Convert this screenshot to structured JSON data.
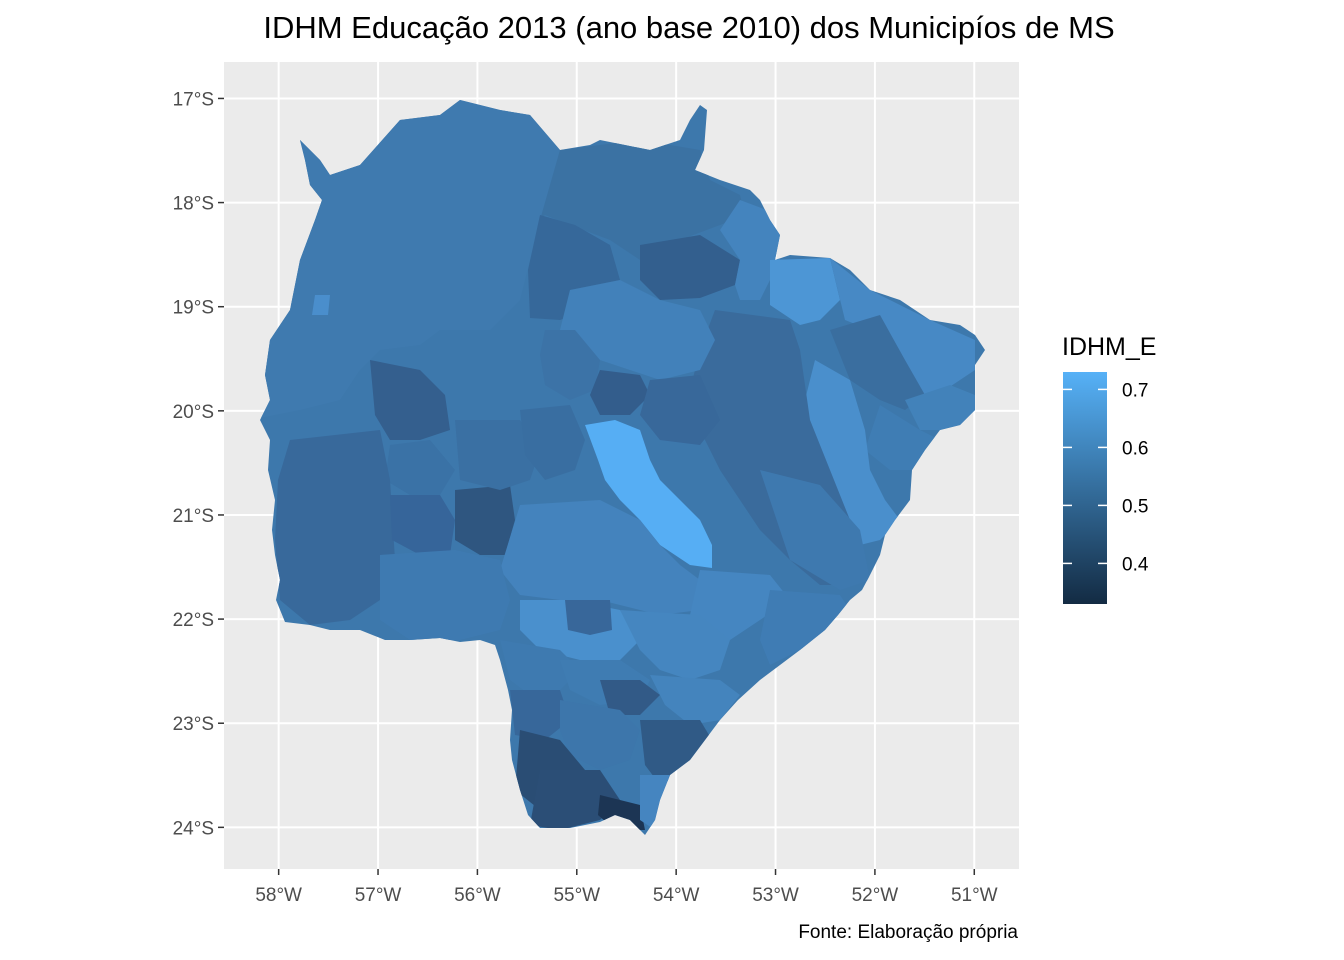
{
  "title": "IDHM Educação 2013 (ano base 2010) dos Municipíos de MS",
  "caption": "Fonte: Elaboração própria",
  "legend": {
    "title": "IDHM_E",
    "ticks": [
      0.7,
      0.6,
      0.5,
      0.4
    ],
    "tick_labels": [
      "0.7",
      "0.6",
      "0.5",
      "0.4"
    ],
    "range": [
      0.33,
      0.73
    ],
    "color_low": "#132B43",
    "color_high": "#56B1F7"
  },
  "axes": {
    "x_labels": [
      "58°W",
      "57°W",
      "56°W",
      "55°W",
      "54°W",
      "53°W",
      "52°W",
      "51°W"
    ],
    "y_labels": [
      "17°S",
      "18°S",
      "19°S",
      "20°S",
      "21°S",
      "22°S",
      "23°S",
      "24°S"
    ],
    "x_values": [
      -58,
      -57,
      -56,
      -55,
      -54,
      -53,
      -52,
      -51
    ],
    "y_values": [
      -17,
      -18,
      -19,
      -20,
      -21,
      -22,
      -23,
      -24
    ],
    "xlim": [
      -58.55,
      -50.55
    ],
    "ylim": [
      -24.4,
      -16.65
    ]
  },
  "style": {
    "panel_background": "#EBEBEB",
    "grid_color": "#FFFFFF"
  }
}
